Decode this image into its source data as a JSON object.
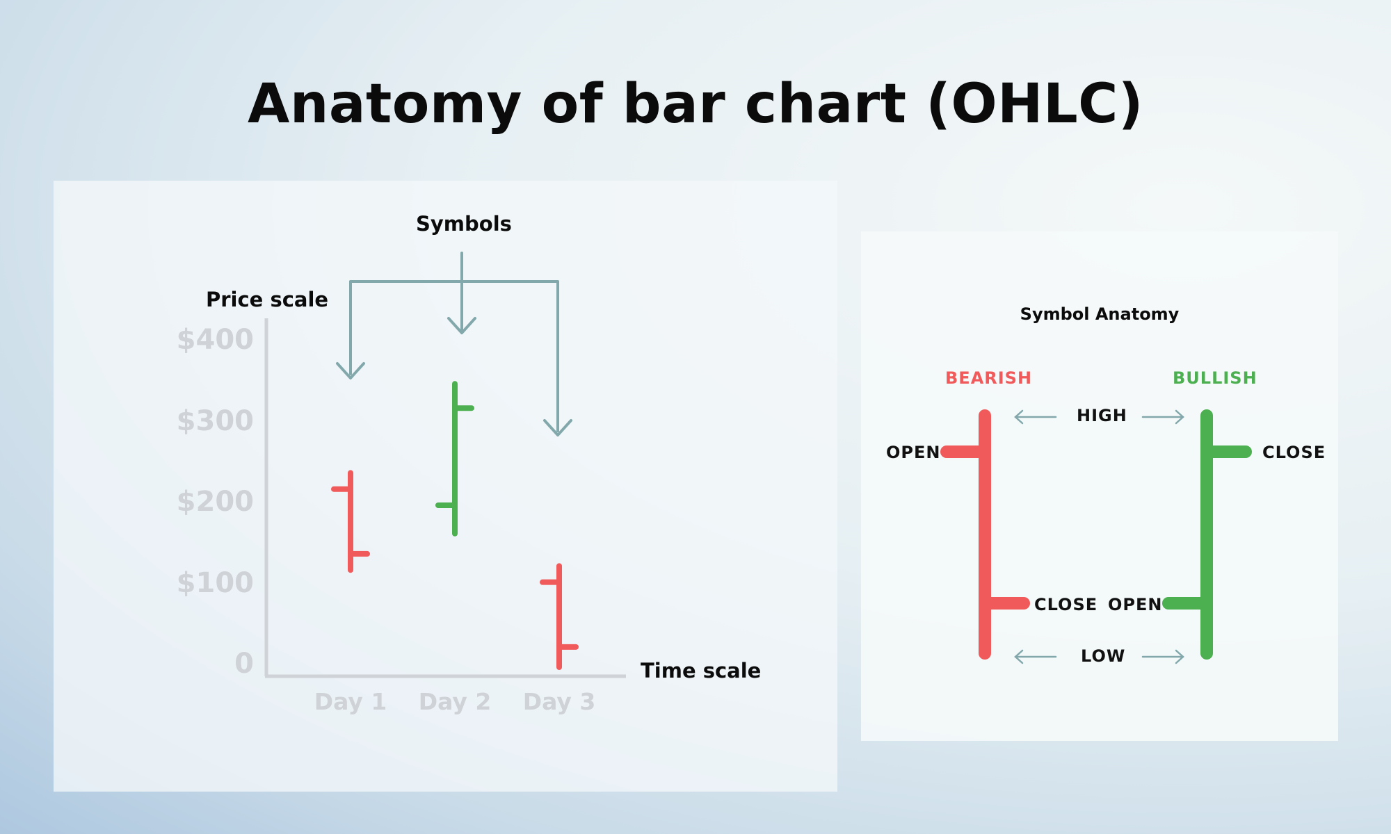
{
  "title": "Anatomy of bar chart (OHLC)",
  "colors": {
    "bearish": "#f15a5a",
    "bullish": "#4caf50",
    "annotation": "#82a8ab",
    "axis": "#cfd2d6"
  },
  "left": {
    "symbols_label": "Symbols",
    "price_scale_label": "Price scale",
    "time_scale_label": "Time scale"
  },
  "chart_data": {
    "type": "ohlc",
    "categories": [
      "Day 1",
      "Day 2",
      "Day 3"
    ],
    "y_tick_labels": [
      "$400",
      "$300",
      "$200",
      "$100",
      "0"
    ],
    "y_ticks": [
      400,
      300,
      200,
      100,
      0
    ],
    "ylim": [
      0,
      400
    ],
    "bars": [
      {
        "category": "Day 1",
        "open": 220,
        "high": 240,
        "low": 120,
        "close": 140,
        "direction": "bearish"
      },
      {
        "category": "Day 2",
        "open": 200,
        "high": 350,
        "low": 165,
        "close": 320,
        "direction": "bullish"
      },
      {
        "category": "Day 3",
        "open": 105,
        "high": 125,
        "low": 0,
        "close": 25,
        "direction": "bearish"
      }
    ]
  },
  "anatomy": {
    "title": "Symbol  Anatomy",
    "bearish_label": "BEARISH",
    "bullish_label": "BULLISH",
    "high_label": "HIGH",
    "low_label": "LOW",
    "bearish_open": "OPEN",
    "bearish_close": "CLOSE",
    "bullish_open": "OPEN",
    "bullish_close": "CLOSE"
  }
}
